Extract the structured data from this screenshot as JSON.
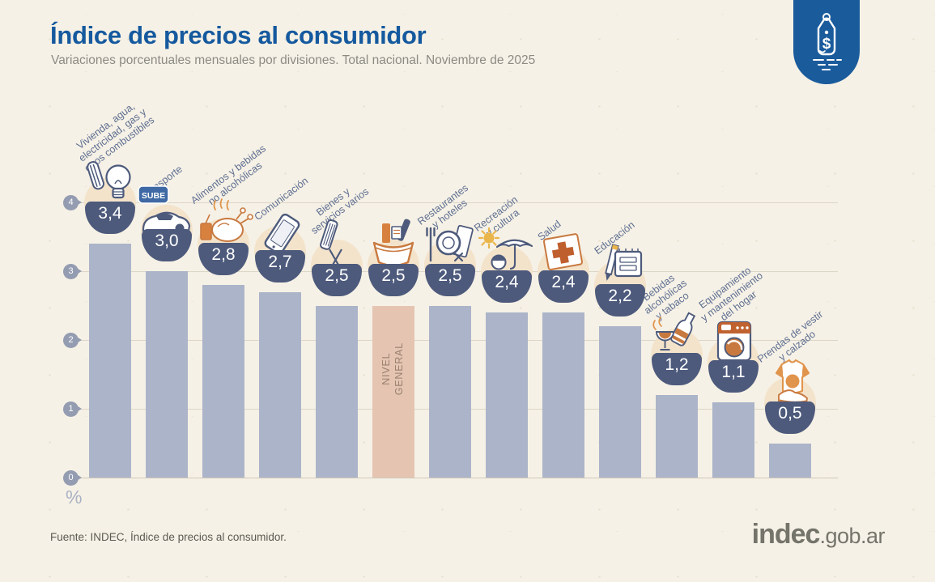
{
  "header": {
    "title": "Índice de precios al consumidor",
    "subtitle": "Variaciones porcentuales mensuales por divisiones. Total nacional. Noviembre de 2025"
  },
  "badge": {
    "icon": "price-tag-icon",
    "symbol": "$",
    "color": "#1a5b9c"
  },
  "chart_data": {
    "type": "bar",
    "title": "Índice de precios al consumidor",
    "subtitle": "Variaciones porcentuales mensuales por divisiones. Total nacional. Noviembre de 2025",
    "xlabel": "",
    "ylabel": "%",
    "yticks": [
      0,
      1,
      2,
      3,
      4
    ],
    "ylim": [
      0,
      4.3
    ],
    "grid": true,
    "categories": [
      "Vivienda, agua,\nelectricidad, gas y\notros combustibles",
      "Transporte",
      "Alimentos y bebidas\nno alcohólicas",
      "Comunicación",
      "Bienes y\nservicios varios",
      "",
      "Restaurantes\ny hoteles",
      "Recreación\ny cultura",
      "Salud",
      "Educación",
      "Bebidas\nalcohólicas\ny tabaco",
      "Equipamiento\ny mantenimiento\ndel hogar",
      "Prendas de vestir\ny calzado"
    ],
    "values": [
      3.4,
      3.0,
      2.8,
      2.7,
      2.5,
      2.5,
      2.5,
      2.4,
      2.4,
      2.2,
      1.2,
      1.1,
      0.5
    ],
    "value_labels": [
      "3,4",
      "3,0",
      "2,8",
      "2,7",
      "2,5",
      "2,5",
      "2,5",
      "2,4",
      "2,4",
      "2,2",
      "1,2",
      "1,1",
      "0,5"
    ],
    "icons": [
      "lightbulb-utilities-icon",
      "car-sube-icon",
      "roast-chicken-icon",
      "smartphone-icon",
      "comb-scissors-icon",
      "grocery-bag-icon",
      "cutlery-plate-icon",
      "umbrella-sun-icon",
      "first-aid-kit-icon",
      "notebook-pencil-icon",
      "wine-bottle-icon",
      "washing-machine-icon",
      "tshirt-shoe-icon"
    ],
    "highlight_index": 5,
    "highlight_label": "NIVEL GENERAL",
    "sube_label": "SUBE",
    "colors": {
      "bar": "#abb4c8",
      "highlight_bar": "#e5c4b2",
      "bowl": "#4d5a7c",
      "label": "#5d6e91",
      "accent_orange": "#c8793f"
    }
  },
  "footer": {
    "source": "Fuente: INDEC, Índice de precios al consumidor.",
    "logo_main": "indec",
    "logo_suffix": ".gob.ar"
  }
}
